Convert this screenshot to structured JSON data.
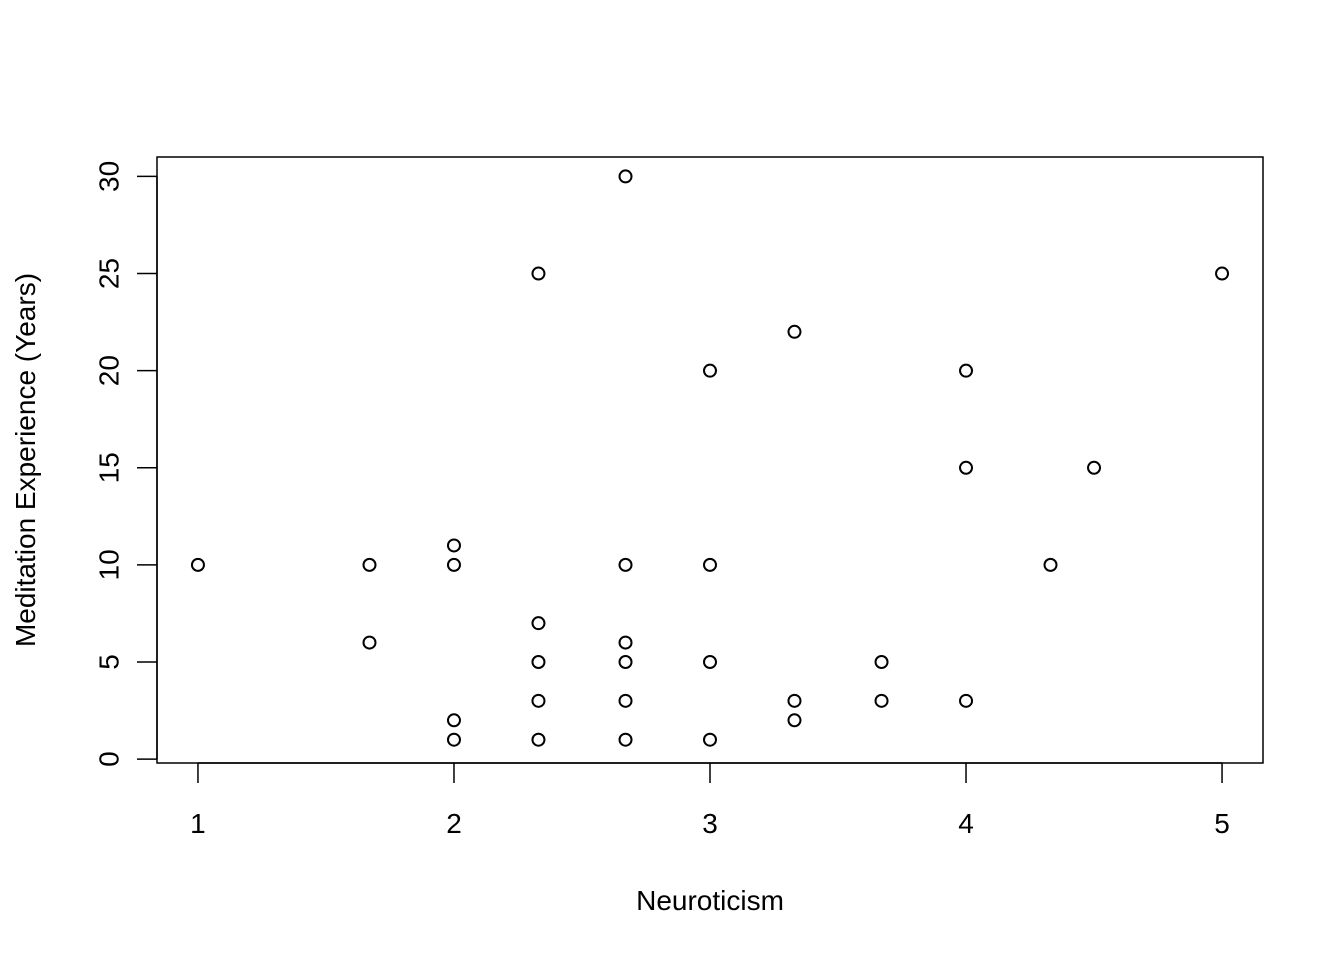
{
  "chart_data": {
    "type": "scatter",
    "title": "",
    "xlabel": "Neuroticism",
    "ylabel": "Meditation Experience (Years)",
    "xlim": [
      0.84,
      5.16
    ],
    "ylim": [
      -0.2,
      31.0
    ],
    "xticks": [
      1,
      2,
      3,
      4,
      5
    ],
    "xtick_labels": [
      "1",
      "2",
      "3",
      "4",
      "5"
    ],
    "yticks": [
      0,
      5,
      10,
      15,
      20,
      25,
      30
    ],
    "ytick_labels": [
      "0",
      "5",
      "10",
      "15",
      "20",
      "25",
      "30"
    ],
    "grid": false,
    "legend": false,
    "marker": "open-circle",
    "marker_color": "#000000",
    "points": [
      {
        "x": 1.0,
        "y": 10
      },
      {
        "x": 1.67,
        "y": 10
      },
      {
        "x": 1.67,
        "y": 6
      },
      {
        "x": 2.0,
        "y": 11
      },
      {
        "x": 2.0,
        "y": 10
      },
      {
        "x": 2.0,
        "y": 2
      },
      {
        "x": 2.0,
        "y": 1
      },
      {
        "x": 2.33,
        "y": 25
      },
      {
        "x": 2.33,
        "y": 7
      },
      {
        "x": 2.33,
        "y": 5
      },
      {
        "x": 2.33,
        "y": 3
      },
      {
        "x": 2.33,
        "y": 1
      },
      {
        "x": 2.67,
        "y": 30
      },
      {
        "x": 2.67,
        "y": 10
      },
      {
        "x": 2.67,
        "y": 6
      },
      {
        "x": 2.67,
        "y": 5
      },
      {
        "x": 2.67,
        "y": 3
      },
      {
        "x": 2.67,
        "y": 1
      },
      {
        "x": 3.0,
        "y": 20
      },
      {
        "x": 3.0,
        "y": 10
      },
      {
        "x": 3.0,
        "y": 5
      },
      {
        "x": 3.0,
        "y": 1
      },
      {
        "x": 3.33,
        "y": 22
      },
      {
        "x": 3.33,
        "y": 3
      },
      {
        "x": 3.33,
        "y": 2
      },
      {
        "x": 3.67,
        "y": 5
      },
      {
        "x": 3.67,
        "y": 3
      },
      {
        "x": 4.0,
        "y": 20
      },
      {
        "x": 4.0,
        "y": 15
      },
      {
        "x": 4.0,
        "y": 3
      },
      {
        "x": 4.33,
        "y": 10
      },
      {
        "x": 4.5,
        "y": 15
      },
      {
        "x": 5.0,
        "y": 25
      }
    ]
  }
}
